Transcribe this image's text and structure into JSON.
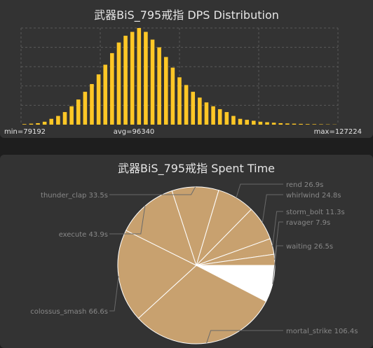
{
  "chart_data": [
    {
      "type": "bar",
      "title": "武器BiS_795戒指 DPS Distribution",
      "min_label": "min=79192",
      "avg_label": "avg=96340",
      "max_label": "max=127224",
      "bar_color": "#ffc726",
      "grid": true,
      "ylim": [
        0,
        100
      ],
      "values": [
        0.6,
        1,
        1.5,
        3,
        6,
        9,
        13,
        19,
        26,
        34,
        42,
        52,
        62,
        74,
        85,
        92,
        96,
        100,
        96,
        88,
        80,
        70,
        59,
        49,
        41,
        34,
        28,
        23,
        19,
        16,
        13,
        9,
        6,
        5,
        4,
        3,
        2.5,
        2,
        1.5,
        1.2,
        1,
        0.8,
        0.6,
        0.5,
        0.4,
        0.3,
        0.2
      ]
    },
    {
      "type": "pie",
      "title": "武器BiS_795戒指 Spent Time",
      "unit": "s",
      "slice_color": "#c8a16f",
      "highlight_color": "#ffffff",
      "label_color": "#888888",
      "slices": [
        {
          "label": "waiting",
          "value": 26.5
        },
        {
          "label": "mortal_strike",
          "value": 106.4
        },
        {
          "label": "colossus_smash",
          "value": 66.6
        },
        {
          "label": "execute",
          "value": 43.9
        },
        {
          "label": "thunder_clap",
          "value": 33.5
        },
        {
          "label": "rend",
          "value": 26.9
        },
        {
          "label": "whirlwind",
          "value": 24.8
        },
        {
          "label": "storm_bolt",
          "value": 11.3
        },
        {
          "label": "ravager",
          "value": 7.9
        }
      ]
    }
  ]
}
